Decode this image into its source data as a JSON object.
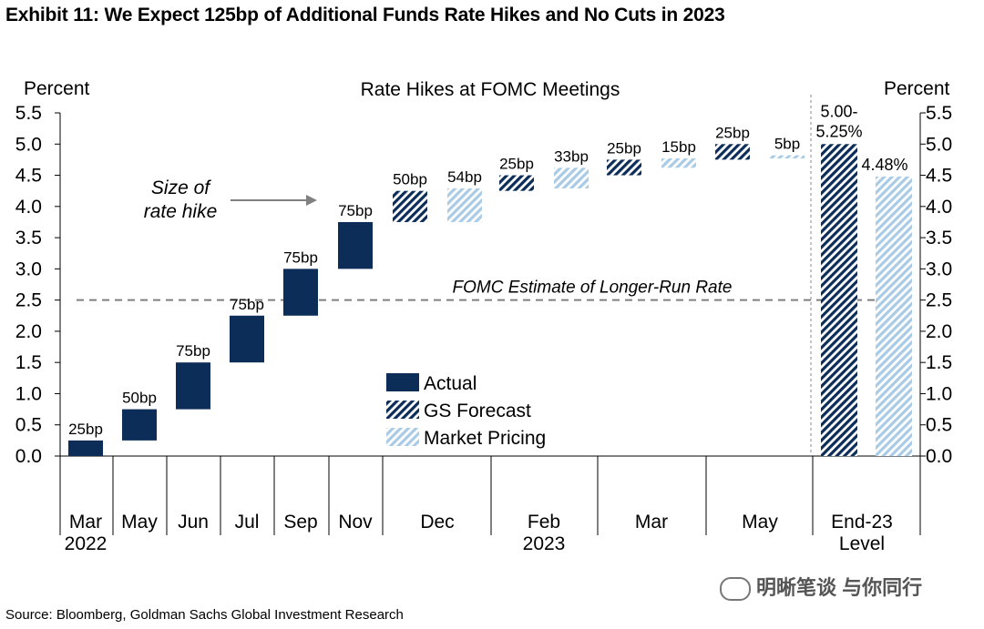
{
  "title": "Exhibit 11: We Expect 125bp of Additional Funds Rate Hikes and No Cuts in 2023",
  "source": "Source: Bloomberg, Goldman Sachs Global Investment Research",
  "watermark": "明晰笔谈 与你同行",
  "colors": {
    "actual": "#0c2d57",
    "forecast": "#0c2d57",
    "market": "#a9cbe6",
    "dashed": "#808080"
  },
  "chart_data": {
    "type": "bar",
    "subtitle": "Rate Hikes at FOMC Meetings",
    "ylabel_left": "Percent",
    "ylabel_right": "Percent",
    "ylim": [
      0,
      5.5
    ],
    "yticks": [
      "0.0",
      "0.5",
      "1.0",
      "1.5",
      "2.0",
      "2.5",
      "3.0",
      "3.5",
      "4.0",
      "4.5",
      "5.0",
      "5.5"
    ],
    "reference_line": {
      "value": 2.5,
      "label": "FOMC Estimate of Longer-Run Rate"
    },
    "annotation": "Size of rate hike",
    "legend": [
      "Actual",
      "GS Forecast",
      "Market Pricing"
    ],
    "groups": [
      {
        "label": "Mar",
        "year": "2022"
      },
      {
        "label": "May",
        "year": ""
      },
      {
        "label": "Jun",
        "year": ""
      },
      {
        "label": "Jul",
        "year": ""
      },
      {
        "label": "Sep",
        "year": ""
      },
      {
        "label": "Nov",
        "year": ""
      },
      {
        "label": "Dec",
        "year": ""
      },
      {
        "label": "Feb",
        "year": "2023"
      },
      {
        "label": "Mar",
        "year": ""
      },
      {
        "label": "May",
        "year": ""
      },
      {
        "label": "End-23",
        "year": "Level"
      }
    ],
    "series": [
      {
        "name": "Actual",
        "values": [
          {
            "group": 0,
            "start": 0.0,
            "end": 0.25,
            "label": "25bp"
          },
          {
            "group": 1,
            "start": 0.25,
            "end": 0.75,
            "label": "50bp"
          },
          {
            "group": 2,
            "start": 0.75,
            "end": 1.5,
            "label": "75bp"
          },
          {
            "group": 3,
            "start": 1.5,
            "end": 2.25,
            "label": "75bp"
          },
          {
            "group": 4,
            "start": 2.25,
            "end": 3.0,
            "label": "75bp"
          },
          {
            "group": 5,
            "start": 3.0,
            "end": 3.75,
            "label": "75bp"
          }
        ]
      },
      {
        "name": "GS Forecast",
        "values": [
          {
            "group": 6,
            "start": 3.75,
            "end": 4.25,
            "label": "50bp"
          },
          {
            "group": 7,
            "start": 4.25,
            "end": 4.5,
            "label": "25bp"
          },
          {
            "group": 8,
            "start": 4.5,
            "end": 4.75,
            "label": "25bp"
          },
          {
            "group": 9,
            "start": 4.75,
            "end": 5.0,
            "label": "25bp"
          },
          {
            "group": 10,
            "start": 0.0,
            "end": 5.0,
            "label": "5.00-5.25%"
          }
        ]
      },
      {
        "name": "Market Pricing",
        "values": [
          {
            "group": 6,
            "start": 3.75,
            "end": 4.29,
            "label": "54bp"
          },
          {
            "group": 7,
            "start": 4.29,
            "end": 4.62,
            "label": "33bp"
          },
          {
            "group": 8,
            "start": 4.62,
            "end": 4.77,
            "label": "15bp"
          },
          {
            "group": 9,
            "start": 4.77,
            "end": 4.82,
            "label": "5bp"
          },
          {
            "group": 10,
            "start": 0.0,
            "end": 4.48,
            "label": "4.48%"
          }
        ]
      }
    ]
  }
}
